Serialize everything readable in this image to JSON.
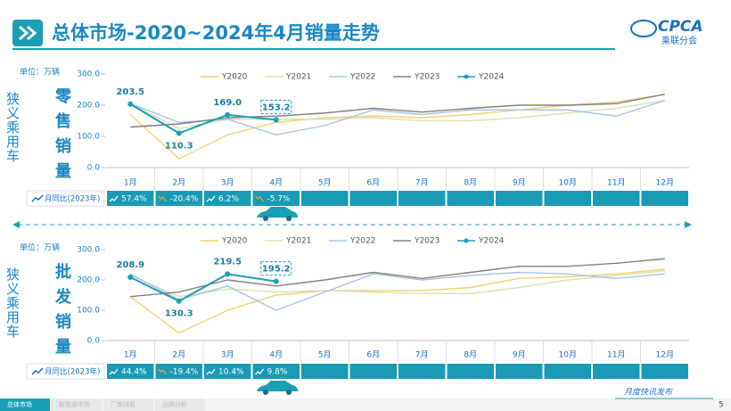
{
  "header": {
    "title": "总体市场-2020~2024年4月销量走势",
    "logo": "CPCA",
    "logo_sub": "乘联分会"
  },
  "chart_data": [
    {
      "type": "line",
      "segment": "狭义乘用车",
      "title": "零售销量",
      "unit": "单位：万辆",
      "categories": [
        "1月",
        "2月",
        "3月",
        "4月",
        "5月",
        "6月",
        "7月",
        "8月",
        "9月",
        "10月",
        "11月",
        "12月"
      ],
      "ylim": [
        0,
        300
      ],
      "yticks": [
        {
          "value": 0,
          "label": "0.0"
        },
        {
          "value": 100,
          "label": "100.0"
        },
        {
          "value": 200,
          "label": "200.0"
        },
        {
          "value": 300,
          "label": "300.0"
        }
      ],
      "series": [
        {
          "name": "Y2020",
          "color": "#f3d271",
          "values": [
            170,
            28,
            105,
            145,
            160,
            165,
            160,
            170,
            185,
            200,
            210,
            235
          ]
        },
        {
          "name": "Y2021",
          "color": "#d5e3b2",
          "values": [
            205,
            125,
            155,
            155,
            155,
            160,
            150,
            150,
            160,
            175,
            190,
            215
          ]
        },
        {
          "name": "Y2022",
          "color": "#a8c3e3",
          "values": [
            205,
            145,
            155,
            105,
            135,
            185,
            170,
            185,
            185,
            185,
            165,
            215
          ]
        },
        {
          "name": "Y2023",
          "color": "#808080",
          "values": [
            130,
            140,
            160,
            165,
            175,
            190,
            178,
            190,
            200,
            200,
            205,
            235
          ]
        },
        {
          "name": "Y2024",
          "color": "#1a9fb5",
          "values": [
            203.5,
            110.3,
            169.0,
            153.2,
            null,
            null,
            null,
            null,
            null,
            null,
            null,
            null
          ],
          "value_labels": [
            "203.5",
            "110.3",
            "169.0",
            "153.2",
            null,
            null,
            null,
            null,
            null,
            null,
            null,
            null
          ]
        }
      ],
      "yoy": {
        "label": "月同比(2023年)",
        "values": [
          57.4,
          -20.4,
          6.2,
          -5.7
        ],
        "value_labels": [
          "57.4%",
          "-20.4%",
          "6.2%",
          "-5.7%"
        ]
      }
    },
    {
      "type": "line",
      "segment": "狭义乘用车",
      "title": "批发销量",
      "unit": "单位：万辆",
      "categories": [
        "1月",
        "2月",
        "3月",
        "4月",
        "5月",
        "6月",
        "7月",
        "8月",
        "9月",
        "10月",
        "11月",
        "12月"
      ],
      "ylim": [
        0,
        300
      ],
      "yticks": [
        {
          "value": 0,
          "label": "0.0"
        },
        {
          "value": 100,
          "label": "100.0"
        },
        {
          "value": 200,
          "label": "200.0"
        },
        {
          "value": 300,
          "label": "300.0"
        }
      ],
      "series": [
        {
          "name": "Y2020",
          "color": "#f3d271",
          "values": [
            145,
            25,
            100,
            150,
            165,
            165,
            165,
            175,
            205,
            210,
            220,
            235
          ]
        },
        {
          "name": "Y2021",
          "color": "#d5e3b2",
          "values": [
            215,
            145,
            170,
            160,
            165,
            160,
            155,
            155,
            175,
            200,
            215,
            230
          ]
        },
        {
          "name": "Y2022",
          "color": "#a8c3e3",
          "values": [
            220,
            135,
            180,
            100,
            160,
            220,
            200,
            215,
            225,
            220,
            205,
            220
          ]
        },
        {
          "name": "Y2023",
          "color": "#808080",
          "values": [
            145,
            160,
            200,
            180,
            200,
            225,
            205,
            225,
            245,
            245,
            255,
            270
          ]
        },
        {
          "name": "Y2024",
          "color": "#1a9fb5",
          "values": [
            208.9,
            130.3,
            219.5,
            195.2,
            null,
            null,
            null,
            null,
            null,
            null,
            null,
            null
          ],
          "value_labels": [
            "208.9",
            "130.3",
            "219.5",
            "195.2",
            null,
            null,
            null,
            null,
            null,
            null,
            null,
            null
          ]
        }
      ],
      "yoy": {
        "label": "月同比(2023年)",
        "values": [
          44.4,
          -19.4,
          10.4,
          9.8
        ],
        "value_labels": [
          "44.4%",
          "-19.4%",
          "10.4%",
          "9.8%"
        ]
      }
    }
  ],
  "footer": {
    "tabs": [
      "总体市场",
      "新能源市场",
      "厂商排名",
      "品牌分析"
    ],
    "note": "月度快讯发布",
    "page": "5"
  }
}
